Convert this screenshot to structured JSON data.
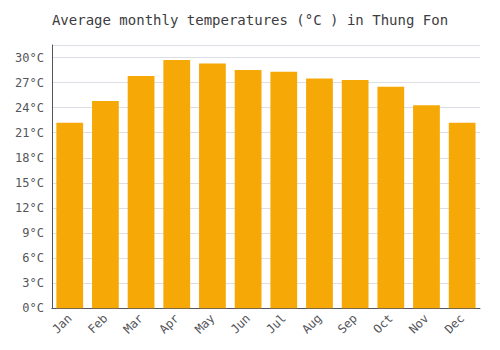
{
  "chart_data": {
    "type": "bar",
    "title": "Average monthly temperatures (°C ) in Thung Fon",
    "categories": [
      "Jan",
      "Feb",
      "Mar",
      "Apr",
      "May",
      "Jun",
      "Jul",
      "Aug",
      "Sep",
      "Oct",
      "Nov",
      "Dec"
    ],
    "values": [
      22.2,
      24.8,
      27.8,
      29.7,
      29.3,
      28.5,
      28.3,
      27.5,
      27.3,
      26.5,
      24.3,
      22.2
    ],
    "color": "#F5A806",
    "ylim": [
      0,
      31.5
    ],
    "yticks": [
      {
        "value": 0,
        "label": "0°C"
      },
      {
        "value": 3,
        "label": "3°C"
      },
      {
        "value": 6,
        "label": "6°C"
      },
      {
        "value": 9,
        "label": "9°C"
      },
      {
        "value": 12,
        "label": "12°C"
      },
      {
        "value": 15,
        "label": "15°C"
      },
      {
        "value": 18,
        "label": "18°C"
      },
      {
        "value": 21,
        "label": "21°C"
      },
      {
        "value": 24,
        "label": "24°C"
      },
      {
        "value": 27,
        "label": "27°C"
      },
      {
        "value": 30,
        "label": "30°C"
      }
    ],
    "grid": true
  }
}
